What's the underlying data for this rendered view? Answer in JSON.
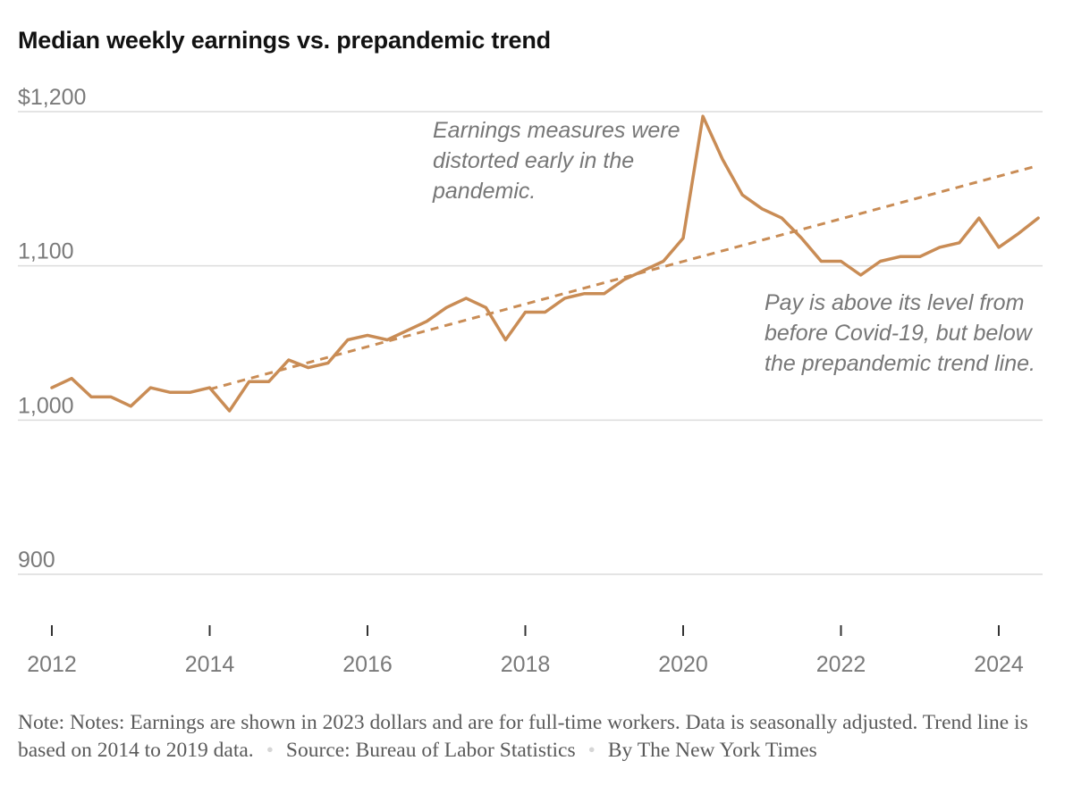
{
  "title": "Median weekly earnings vs. prepandemic trend",
  "chart_data": {
    "type": "line",
    "title": "Median weekly earnings vs. prepandemic trend",
    "xlabel": "",
    "ylabel": "",
    "ylim": [
      900,
      1200
    ],
    "xlim": [
      2012,
      2024.6
    ],
    "y_ticks": [
      {
        "value": 1200,
        "label": "$1,200"
      },
      {
        "value": 1100,
        "label": "1,100"
      },
      {
        "value": 1000,
        "label": "1,000"
      },
      {
        "value": 900,
        "label": "900"
      }
    ],
    "x_ticks": [
      {
        "value": 2012,
        "label": "2012"
      },
      {
        "value": 2014,
        "label": "2014"
      },
      {
        "value": 2016,
        "label": "2016"
      },
      {
        "value": 2018,
        "label": "2018"
      },
      {
        "value": 2020,
        "label": "2020"
      },
      {
        "value": 2022,
        "label": "2022"
      },
      {
        "value": 2024,
        "label": "2024"
      }
    ],
    "grid": "horizontal",
    "color": "#c98c55",
    "series": [
      {
        "style": "solid",
        "points": [
          [
            2012.0,
            1021
          ],
          [
            2012.25,
            1027
          ],
          [
            2012.5,
            1015
          ],
          [
            2012.75,
            1015
          ],
          [
            2013.0,
            1009
          ],
          [
            2013.25,
            1021
          ],
          [
            2013.5,
            1018
          ],
          [
            2013.75,
            1018
          ],
          [
            2014.0,
            1021
          ],
          [
            2014.25,
            1006
          ],
          [
            2014.5,
            1025
          ],
          [
            2014.75,
            1025
          ],
          [
            2015.0,
            1039
          ],
          [
            2015.25,
            1034
          ],
          [
            2015.5,
            1037
          ],
          [
            2015.75,
            1052
          ],
          [
            2016.0,
            1055
          ],
          [
            2016.25,
            1052
          ],
          [
            2016.5,
            1058
          ],
          [
            2016.75,
            1064
          ],
          [
            2017.0,
            1073
          ],
          [
            2017.25,
            1079
          ],
          [
            2017.5,
            1073
          ],
          [
            2017.75,
            1052
          ],
          [
            2018.0,
            1070
          ],
          [
            2018.25,
            1070
          ],
          [
            2018.5,
            1079
          ],
          [
            2018.75,
            1082
          ],
          [
            2019.0,
            1082
          ],
          [
            2019.25,
            1091
          ],
          [
            2019.5,
            1097
          ],
          [
            2019.75,
            1103
          ],
          [
            2020.0,
            1118
          ],
          [
            2020.25,
            1197
          ],
          [
            2020.5,
            1169
          ],
          [
            2020.75,
            1146
          ],
          [
            2021.0,
            1137
          ],
          [
            2021.25,
            1131
          ],
          [
            2021.5,
            1118
          ],
          [
            2021.75,
            1103
          ],
          [
            2022.0,
            1103
          ],
          [
            2022.25,
            1094
          ],
          [
            2022.5,
            1103
          ],
          [
            2022.75,
            1106
          ],
          [
            2023.0,
            1106
          ],
          [
            2023.25,
            1112
          ],
          [
            2023.5,
            1115
          ],
          [
            2023.75,
            1131
          ],
          [
            2024.0,
            1112
          ],
          [
            2024.25,
            1121
          ],
          [
            2024.5,
            1131
          ]
        ]
      },
      {
        "style": "dashed",
        "points": [
          [
            2014.0,
            1020
          ],
          [
            2024.5,
            1165
          ]
        ]
      }
    ],
    "annotations": [
      {
        "lines": [
          "Earnings measures were",
          "distorted early in the",
          "pandemic."
        ]
      },
      {
        "lines": [
          "Pay is above its level from",
          "before Covid-19, but below",
          "the prepandemic trend line."
        ]
      }
    ]
  },
  "footer": {
    "note": "Note: Notes: Earnings are shown in 2023 dollars and are for full-time workers. Data is seasonally adjusted. Trend line is based on 2014 to 2019 data.",
    "separator": "•",
    "source": "Source: Bureau of Labor Statistics",
    "byline": "By The New York Times"
  }
}
